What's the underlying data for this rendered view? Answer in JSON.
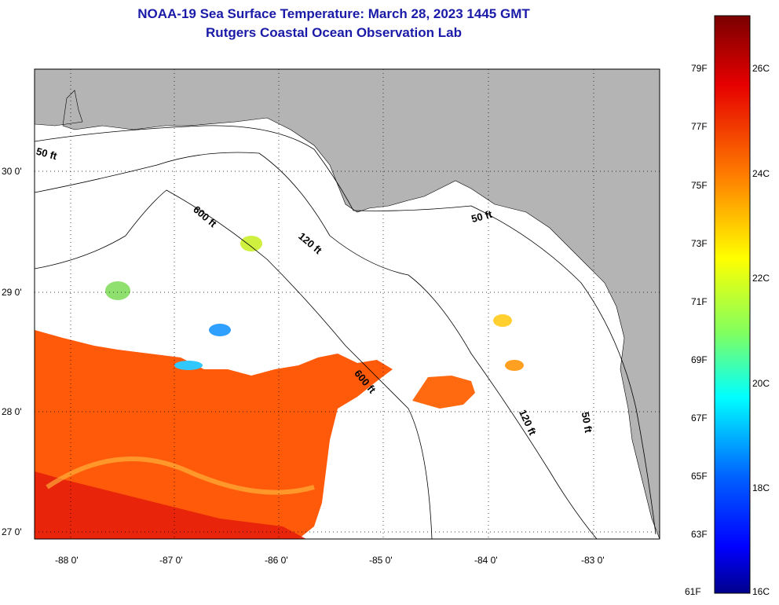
{
  "title": {
    "line1": "NOAA-19 Sea Surface Temperature:  March 28, 2023 1445 GMT",
    "line2": "Rutgers Coastal Ocean Observation Lab"
  },
  "map": {
    "lon_labels": [
      "-88 0'",
      "-87 0'",
      "-86 0'",
      "-85 0'",
      "-84 0'",
      "-83 0'"
    ],
    "lat_labels": [
      "30 0'",
      "29 0'",
      "28 0'",
      "27 0'"
    ],
    "contours": [
      "50 ft",
      "600 ft",
      "120 ft",
      "50 ft",
      "600 ft",
      "120 ft",
      "50 ft"
    ],
    "colors": {
      "land": "#b4b4b4",
      "ocean_nodata": "#ffffff",
      "warm": "#ff5a0a",
      "hot": "#e61e0a"
    }
  },
  "colorbar": {
    "fahrenheit": [
      "79F",
      "77F",
      "75F",
      "73F",
      "71F",
      "69F",
      "67F",
      "65F",
      "63F",
      "61F"
    ],
    "celsius": [
      "26C",
      "24C",
      "22C",
      "20C",
      "18C",
      "16C"
    ],
    "colors": [
      "#800000",
      "#ff0000",
      "#ff8000",
      "#ffff00",
      "#80ff80",
      "#00ffff",
      "#0080ff",
      "#0000ff",
      "#00008b"
    ]
  }
}
